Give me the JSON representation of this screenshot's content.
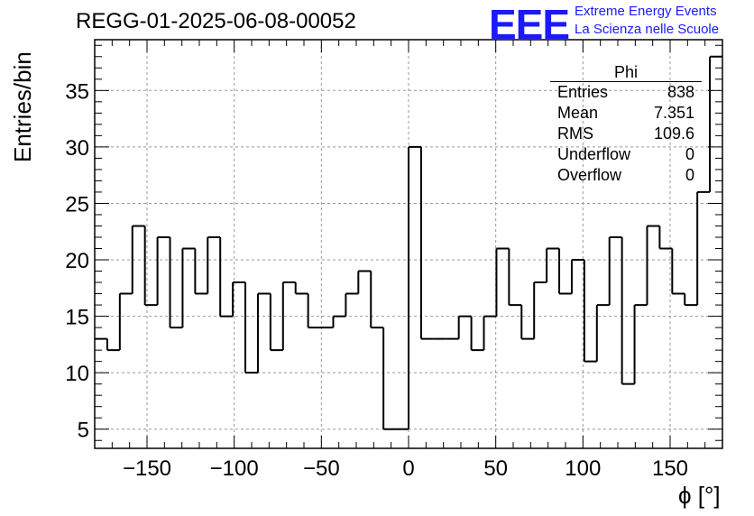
{
  "header": {
    "title": "REGG-01-2025-06-08-00052",
    "logo": "EEE",
    "logo_line1": "Extreme Energy Events",
    "logo_line2": "La Scienza nelle Scuole"
  },
  "stats": {
    "name": "Phi",
    "rows": [
      {
        "label": "Entries",
        "value": "838"
      },
      {
        "label": "Mean",
        "value": "7.351"
      },
      {
        "label": "RMS",
        "value": "109.6"
      },
      {
        "label": "Underflow",
        "value": "0"
      },
      {
        "label": "Overflow",
        "value": "0"
      }
    ]
  },
  "chart_data": {
    "type": "bar",
    "style": "step-histogram",
    "xlabel": "ϕ [°]",
    "ylabel": "Entries/bin",
    "xlim": [
      -180,
      180
    ],
    "ylim": [
      3.3,
      39.5
    ],
    "bin_width": 7.5,
    "xticks": [
      -150,
      -100,
      -50,
      0,
      50,
      100,
      150
    ],
    "yticks": [
      5,
      10,
      15,
      20,
      25,
      30,
      35
    ],
    "grid": true,
    "values": [
      13,
      12,
      17,
      23,
      16,
      22,
      14,
      21,
      17,
      22,
      15,
      18,
      10,
      17,
      12,
      18,
      17,
      14,
      14,
      15,
      17,
      19,
      14,
      5,
      5,
      30,
      13,
      13,
      13,
      15,
      12,
      15,
      21,
      16,
      13,
      18,
      21,
      17,
      20,
      11,
      16,
      22,
      9,
      16,
      23,
      21,
      17,
      16,
      26,
      38
    ]
  }
}
